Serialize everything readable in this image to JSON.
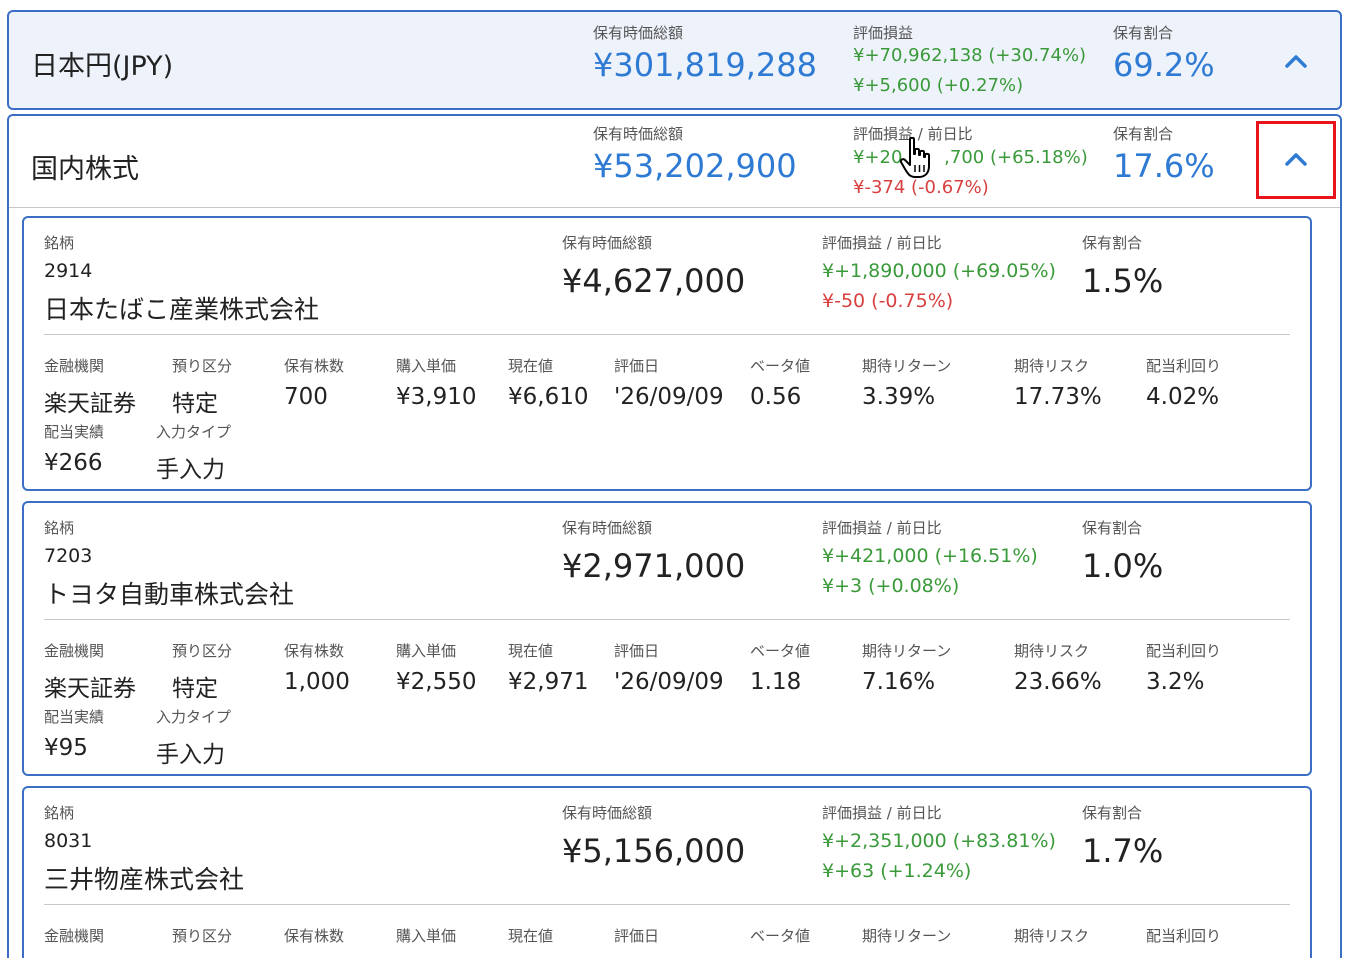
{
  "currency": {
    "title": "日本円(JPY)",
    "market_value_label": "保有時価総額",
    "market_value": "¥301,819,288",
    "pl_label": "評価損益",
    "pl_total": "¥+70,962,138 (+30.74%)",
    "pl_day": "¥+5,600 (+0.27%)",
    "ratio_label": "保有割合",
    "ratio": "69.2%",
    "toggle_icon": "chevron-up-icon"
  },
  "category": {
    "title": "国内株式",
    "market_value_label": "保有時価総額",
    "market_value": "¥53,202,900",
    "pl_label": "評価損益 / 前日比",
    "pl_total": "¥+20,",
    "pl_total_end": ",700 (+65.18%)",
    "pl_day": "¥-374 (-0.67%)",
    "ratio_label": "保有割合",
    "ratio": "17.6%",
    "toggle_icon": "chevron-up-icon"
  },
  "labels": {
    "stock": "銘柄",
    "market_value": "保有時価総額",
    "pl": "評価損益 / 前日比",
    "ratio": "保有割合",
    "institution": "金融機関",
    "account": "預り区分",
    "shares": "保有株数",
    "buy_price": "購入単価",
    "current_price": "現在値",
    "valuation_date": "評価日",
    "beta": "ベータ値",
    "expected_return": "期待リターン",
    "expected_risk": "期待リスク",
    "dividend_yield": "配当利回り",
    "dividend_actual": "配当実績",
    "input_type": "入力タイプ"
  },
  "stocks": [
    {
      "code": "2914",
      "name": "日本たばこ産業株式会社",
      "market_value": "¥4,627,000",
      "pl_total": "¥+1,890,000 (+69.05%)",
      "pl_day": "¥-50 (-0.75%)",
      "pl_day_color": "#d84040",
      "ratio": "1.5%",
      "institution": "楽天証券",
      "account": "特定",
      "shares": "700",
      "buy_price": "¥3,910",
      "current_price": "¥6,610",
      "valuation_date": "'26/09/09",
      "beta": "0.56",
      "expected_return": "3.39%",
      "expected_risk": "17.73%",
      "dividend_yield": "4.02%",
      "dividend_actual": "¥266",
      "input_type": "手入力"
    },
    {
      "code": "7203",
      "name": "トヨタ自動車株式会社",
      "market_value": "¥2,971,000",
      "pl_total": "¥+421,000 (+16.51%)",
      "pl_day": "¥+3 (+0.08%)",
      "pl_day_color": "#3a9a3a",
      "ratio": "1.0%",
      "institution": "楽天証券",
      "account": "特定",
      "shares": "1,000",
      "buy_price": "¥2,550",
      "current_price": "¥2,971",
      "valuation_date": "'26/09/09",
      "beta": "1.18",
      "expected_return": "7.16%",
      "expected_risk": "23.66%",
      "dividend_yield": "3.2%",
      "dividend_actual": "¥95",
      "input_type": "手入力"
    },
    {
      "code": "8031",
      "name": "三井物産株式会社",
      "market_value": "¥5,156,000",
      "pl_total": "¥+2,351,000 (+83.81%)",
      "pl_day": "¥+63 (+1.24%)",
      "pl_day_color": "#3a9a3a",
      "ratio": "1.7%"
    }
  ],
  "colors": {
    "accent_blue": "#2f7bd4",
    "border_blue": "#3a6fc4",
    "gain_green": "#3a9a3a",
    "loss_red": "#d84040",
    "highlight_red": "#e8141c"
  }
}
